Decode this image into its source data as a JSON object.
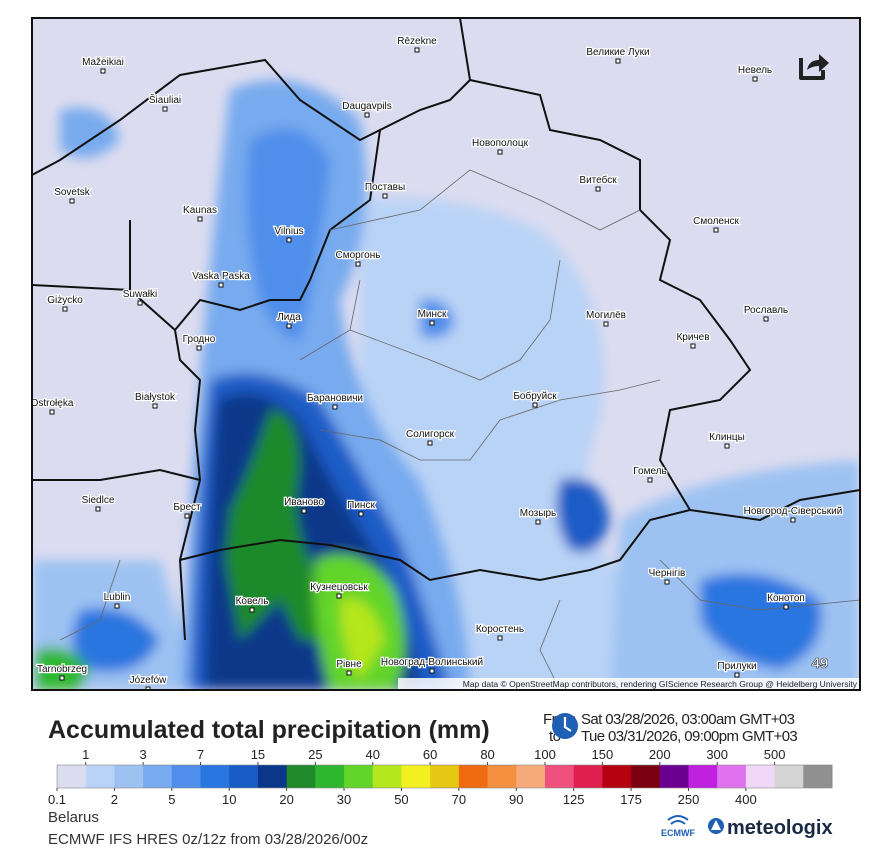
{
  "map": {
    "cities": [
      "Rēzekne",
      "Великие Луки",
      "Mažeikiai",
      "Невель",
      "Šiauliai",
      "Daugavpils",
      "Новополоцк",
      "Витебск",
      "Sovetsk",
      "Поставы",
      "Kaunas",
      "Смоленск",
      "Vilnius",
      "Сморгонь",
      "Vaska Paska",
      "Suwałki",
      "Giżycko",
      "Лида",
      "Минск",
      "Могилёв",
      "Рославль",
      "Гродно",
      "Кричев",
      "Białystok",
      "Барановичи",
      "Бобруйск",
      "Ostrołęka",
      "Солигорск",
      "Клинцы",
      "Гомель",
      "Siedlce",
      "Брест",
      "Иваново",
      "Пинск",
      "Мозырь",
      "Новгород-Сіверський",
      "Чернігів",
      "Ковель",
      "Кузнецовськ",
      "Lublin",
      "Конотоп",
      "Коростень",
      "Рівне",
      "Новоград-Волинський",
      "Прилуки",
      "Tarnobrzeg",
      "Józefów"
    ],
    "frame_number": "49",
    "attribution": "Map data © OpenStreetMap contributors, rendering GIScience Research Group @ Heidelberg University"
  },
  "header": {
    "title": "Accumulated total precipitation (mm)",
    "from_label": "From",
    "from_date": "Sat 03/28/2026, 03:00am GMT+03",
    "to_label": "to",
    "to_date": "Tue 03/31/2026, 09:00pm GMT+03"
  },
  "legend": {
    "upper_labels": [
      1,
      3,
      7,
      15,
      25,
      40,
      60,
      80,
      100,
      150,
      200,
      300,
      500
    ],
    "lower_labels": [
      0.1,
      2,
      5,
      10,
      20,
      30,
      50,
      70,
      90,
      125,
      175,
      250,
      400
    ],
    "colors": [
      "#dcdcf0",
      "#b9d3f6",
      "#9dc2f2",
      "#77aaee",
      "#4f8eea",
      "#2a76e0",
      "#1a5cc6",
      "#0b378a",
      "#1f8a2b",
      "#2fb72f",
      "#62d42a",
      "#b6e61e",
      "#f2f020",
      "#e6c814",
      "#f06a10",
      "#f59040",
      "#f6aa7a",
      "#f0507e",
      "#e01e50",
      "#b40010",
      "#7a0012",
      "#6c0092",
      "#c020e0",
      "#e072f0",
      "#f2d8f8",
      "#d4d4d4",
      "#909090"
    ]
  },
  "footer": {
    "region": "Belarus",
    "model": "ECMWF IFS HRES 0z/12z from 03/28/2026/00z",
    "ecmwf": "ECMWF",
    "brand": "meteologix"
  }
}
